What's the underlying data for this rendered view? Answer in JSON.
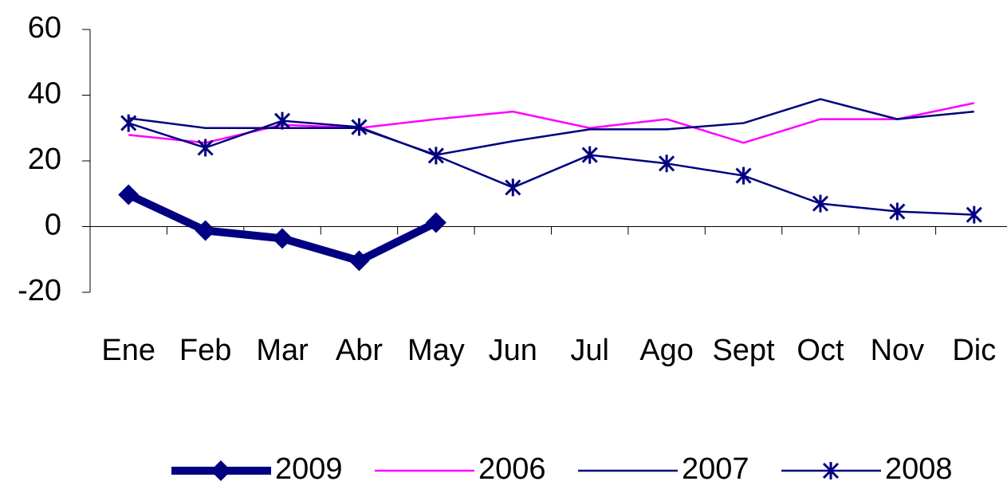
{
  "chart_data": {
    "type": "line",
    "categories": [
      "Ene",
      "Feb",
      "Mar",
      "Abr",
      "May",
      "Jun",
      "Jul",
      "Ago",
      "Sept",
      "Oct",
      "Nov",
      "Dic"
    ],
    "series": [
      {
        "name": "2009",
        "color": "#000080",
        "line_width": 10,
        "marker": "diamond",
        "values": [
          9.7,
          -1.2,
          -3.6,
          -10.4,
          1.2,
          null,
          null,
          null,
          null,
          null,
          null,
          null
        ]
      },
      {
        "name": "2006",
        "color": "#ff00ff",
        "line_width": 2.5,
        "marker": "none",
        "values": [
          27.9,
          25.5,
          31,
          30,
          32.7,
          35,
          30,
          32.7,
          25.5,
          32.7,
          32.7,
          37.6
        ]
      },
      {
        "name": "2007",
        "color": "#000080",
        "line_width": 2.5,
        "marker": "none",
        "values": [
          33,
          30,
          30,
          30,
          21.8,
          26,
          29.6,
          29.6,
          31.5,
          38.8,
          32.7,
          35
        ]
      },
      {
        "name": "2008",
        "color": "#000080",
        "line_width": 2.5,
        "marker": "star",
        "values": [
          31.5,
          24,
          32.2,
          30.3,
          21.6,
          11.9,
          21.8,
          19.2,
          15.5,
          7,
          4.6,
          3.6
        ]
      }
    ],
    "ylim": [
      -20,
      60
    ],
    "yticks": [
      -20,
      0,
      20,
      40,
      60
    ],
    "grid": false,
    "legend": "bottom"
  }
}
